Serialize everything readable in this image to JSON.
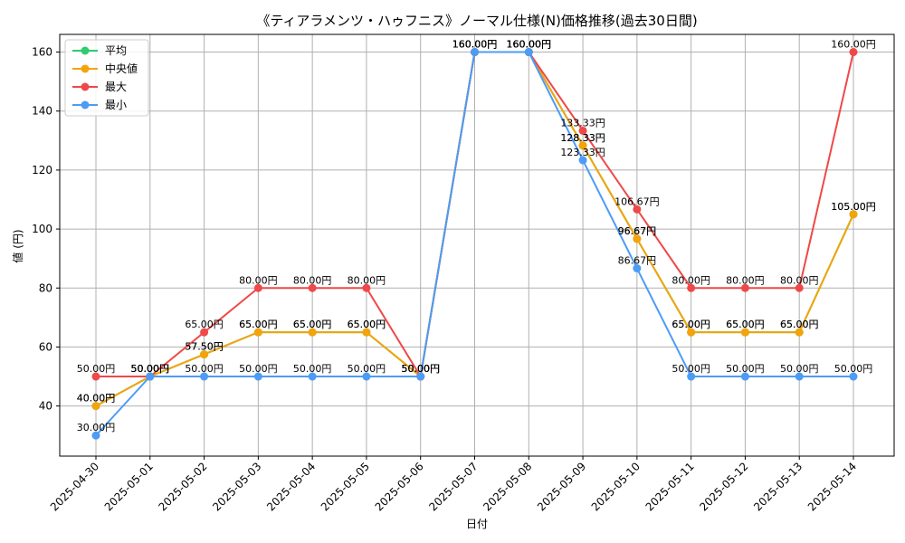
{
  "chart_data": {
    "type": "line",
    "title": "《ティアラメンツ・ハゥフニス》ノーマル仕様(N)価格推移(過去30日間)",
    "xlabel": "日付",
    "ylabel": "値 (円)",
    "ylim": [
      23,
      166
    ],
    "yticks": [
      40,
      60,
      80,
      100,
      120,
      140,
      160
    ],
    "grid": true,
    "legend_position": "top-left",
    "label_suffix": "円",
    "categories": [
      "2025-04-30",
      "2025-05-01",
      "2025-05-02",
      "2025-05-03",
      "2025-05-04",
      "2025-05-05",
      "2025-05-06",
      "2025-05-07",
      "2025-05-08",
      "2025-05-09",
      "2025-05-10",
      "2025-05-11",
      "2025-05-12",
      "2025-05-13",
      "2025-05-14"
    ],
    "series": [
      {
        "name": "平均",
        "color": "#2ecc71",
        "values": [
          40,
          50,
          57.5,
          65,
          65,
          65,
          50,
          160,
          160,
          128.33,
          96.67,
          65,
          65,
          65,
          105
        ]
      },
      {
        "name": "中央値",
        "color": "#f5a30a",
        "values": [
          40,
          50,
          57.5,
          65,
          65,
          65,
          50,
          160,
          160,
          128.33,
          96.67,
          65,
          65,
          65,
          105
        ]
      },
      {
        "name": "最大",
        "color": "#f04848",
        "values": [
          50,
          50,
          65,
          80,
          80,
          80,
          50,
          160,
          160,
          133.33,
          106.67,
          80,
          80,
          80,
          160
        ]
      },
      {
        "name": "最小",
        "color": "#4c9cf5",
        "values": [
          30,
          50,
          50,
          50,
          50,
          50,
          50,
          160,
          160,
          123.33,
          86.67,
          50,
          50,
          50,
          50
        ]
      }
    ]
  }
}
